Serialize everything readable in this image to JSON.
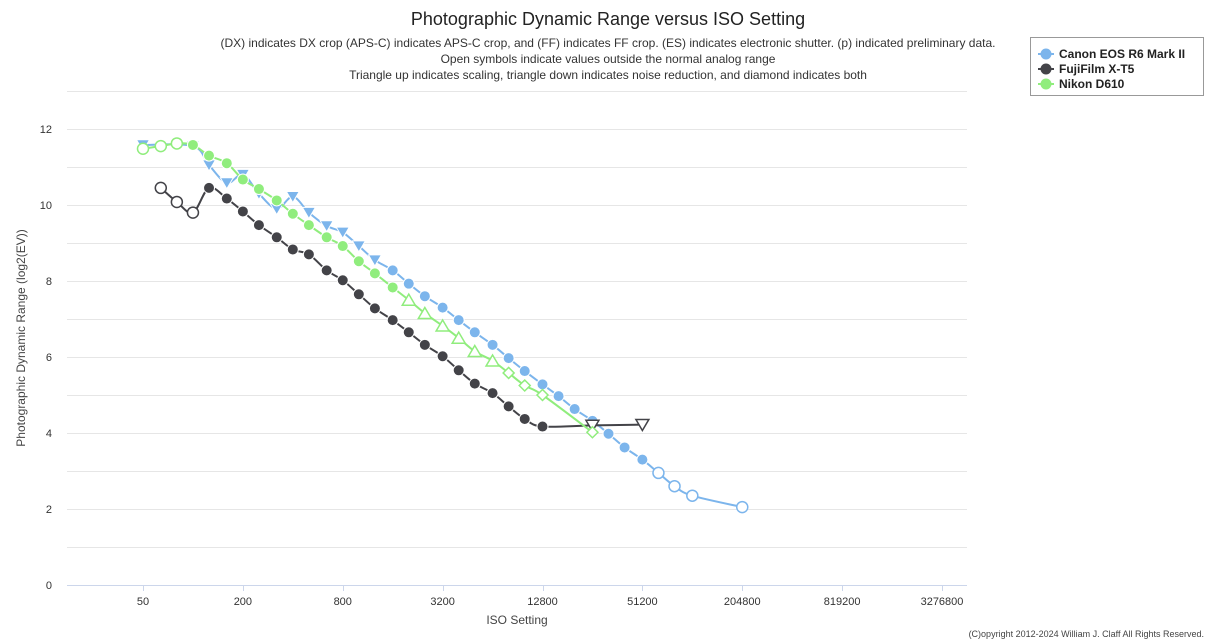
{
  "chart_data": {
    "type": "line",
    "title": "Photographic Dynamic Range versus ISO Setting",
    "subtitle_lines": [
      "(DX) indicates DX crop (APS-C) indicates APS-C crop, and (FF) indicates FF crop. (ES) indicates electronic shutter. (p) indicated preliminary data.",
      "Open symbols indicate values outside the normal analog range",
      "Triangle up indicates scaling, triangle down indicates noise reduction, and diamond indicates both"
    ],
    "xlabel": "ISO Setting",
    "ylabel": "Photographic Dynamic Range (log2(EV))",
    "x_scale": "log2",
    "x_ticks": [
      50,
      200,
      800,
      3200,
      12800,
      51200,
      204800,
      819200,
      3276800
    ],
    "x_tick_labels": [
      "50",
      "200",
      "800",
      "3200",
      "12800",
      "51200",
      "204800",
      "819200",
      "3276800"
    ],
    "ylim": [
      0,
      13
    ],
    "y_ticks": [
      0,
      2,
      4,
      6,
      8,
      10,
      12
    ],
    "y_tick_labels": [
      "0",
      "2",
      "4",
      "6",
      "8",
      "10",
      "12"
    ],
    "grid": true,
    "legend_position": "top-right",
    "copyright": "(C)opyright 2012-2024 William J. Claff All Rights Reserved.",
    "series": [
      {
        "name": "Canon EOS R6 Mark II",
        "color": "#7cb5ec",
        "points": [
          {
            "x": 50,
            "y": 11.58,
            "m": "tri-down",
            "open": false
          },
          {
            "x": 100,
            "y": 11.55,
            "m": "tri-down",
            "open": false
          },
          {
            "x": 125,
            "y": 11.05,
            "m": "tri-down",
            "open": false
          },
          {
            "x": 160,
            "y": 10.58,
            "m": "tri-down",
            "open": false
          },
          {
            "x": 200,
            "y": 10.8,
            "m": "tri-down",
            "open": false
          },
          {
            "x": 250,
            "y": 10.3,
            "m": "tri-down",
            "open": false
          },
          {
            "x": 320,
            "y": 9.9,
            "m": "tri-down",
            "open": false
          },
          {
            "x": 400,
            "y": 10.22,
            "m": "tri-down",
            "open": false
          },
          {
            "x": 500,
            "y": 9.8,
            "m": "tri-down",
            "open": false
          },
          {
            "x": 640,
            "y": 9.45,
            "m": "tri-down",
            "open": false
          },
          {
            "x": 800,
            "y": 9.28,
            "m": "tri-down",
            "open": false
          },
          {
            "x": 1000,
            "y": 8.92,
            "m": "tri-down",
            "open": false
          },
          {
            "x": 1250,
            "y": 8.55,
            "m": "tri-down",
            "open": false
          },
          {
            "x": 1600,
            "y": 8.28,
            "m": "circle",
            "open": false
          },
          {
            "x": 2000,
            "y": 7.93,
            "m": "circle",
            "open": false
          },
          {
            "x": 2500,
            "y": 7.6,
            "m": "circle",
            "open": false
          },
          {
            "x": 3200,
            "y": 7.3,
            "m": "circle",
            "open": false
          },
          {
            "x": 4000,
            "y": 6.97,
            "m": "circle",
            "open": false
          },
          {
            "x": 5000,
            "y": 6.65,
            "m": "circle",
            "open": false
          },
          {
            "x": 6400,
            "y": 6.32,
            "m": "circle",
            "open": false
          },
          {
            "x": 8000,
            "y": 5.97,
            "m": "circle",
            "open": false
          },
          {
            "x": 10000,
            "y": 5.63,
            "m": "circle",
            "open": false
          },
          {
            "x": 12800,
            "y": 5.28,
            "m": "circle",
            "open": false
          },
          {
            "x": 16000,
            "y": 4.97,
            "m": "circle",
            "open": false
          },
          {
            "x": 20000,
            "y": 4.63,
            "m": "circle",
            "open": false
          },
          {
            "x": 25600,
            "y": 4.32,
            "m": "circle",
            "open": false
          },
          {
            "x": 32000,
            "y": 3.98,
            "m": "circle",
            "open": false
          },
          {
            "x": 40000,
            "y": 3.62,
            "m": "circle",
            "open": false
          },
          {
            "x": 51200,
            "y": 3.3,
            "m": "circle",
            "open": false
          },
          {
            "x": 64000,
            "y": 2.95,
            "m": "circle",
            "open": true
          },
          {
            "x": 80000,
            "y": 2.6,
            "m": "circle",
            "open": true
          },
          {
            "x": 102400,
            "y": 2.35,
            "m": "circle",
            "open": true
          },
          {
            "x": 204800,
            "y": 2.05,
            "m": "circle",
            "open": true
          }
        ]
      },
      {
        "name": "FujiFilm X-T5",
        "color": "#434348",
        "points": [
          {
            "x": 64,
            "y": 10.45,
            "m": "circle",
            "open": true
          },
          {
            "x": 80,
            "y": 10.08,
            "m": "circle",
            "open": true
          },
          {
            "x": 100,
            "y": 9.8,
            "m": "circle",
            "open": true
          },
          {
            "x": 125,
            "y": 10.45,
            "m": "circle",
            "open": false
          },
          {
            "x": 160,
            "y": 10.17,
            "m": "circle",
            "open": false
          },
          {
            "x": 200,
            "y": 9.83,
            "m": "circle",
            "open": false
          },
          {
            "x": 250,
            "y": 9.47,
            "m": "circle",
            "open": false
          },
          {
            "x": 320,
            "y": 9.15,
            "m": "circle",
            "open": false
          },
          {
            "x": 400,
            "y": 8.83,
            "m": "circle",
            "open": false
          },
          {
            "x": 500,
            "y": 8.7,
            "m": "circle",
            "open": false
          },
          {
            "x": 640,
            "y": 8.28,
            "m": "circle",
            "open": false
          },
          {
            "x": 800,
            "y": 8.02,
            "m": "circle",
            "open": false
          },
          {
            "x": 1000,
            "y": 7.65,
            "m": "circle",
            "open": false
          },
          {
            "x": 1250,
            "y": 7.28,
            "m": "circle",
            "open": false
          },
          {
            "x": 1600,
            "y": 6.97,
            "m": "circle",
            "open": false
          },
          {
            "x": 2000,
            "y": 6.65,
            "m": "circle",
            "open": false
          },
          {
            "x": 2500,
            "y": 6.32,
            "m": "circle",
            "open": false
          },
          {
            "x": 3200,
            "y": 6.02,
            "m": "circle",
            "open": false
          },
          {
            "x": 4000,
            "y": 5.65,
            "m": "circle",
            "open": false
          },
          {
            "x": 5000,
            "y": 5.3,
            "m": "circle",
            "open": false
          },
          {
            "x": 6400,
            "y": 5.05,
            "m": "circle",
            "open": false
          },
          {
            "x": 8000,
            "y": 4.7,
            "m": "circle",
            "open": false
          },
          {
            "x": 10000,
            "y": 4.37,
            "m": "circle",
            "open": false
          },
          {
            "x": 12800,
            "y": 4.17,
            "m": "circle",
            "open": false
          },
          {
            "x": 25600,
            "y": 4.2,
            "m": "tri-down",
            "open": true
          },
          {
            "x": 51200,
            "y": 4.22,
            "m": "tri-down",
            "open": true
          }
        ]
      },
      {
        "name": "Nikon D610",
        "color": "#90ed7d",
        "points": [
          {
            "x": 50,
            "y": 11.48,
            "m": "circle",
            "open": true
          },
          {
            "x": 64,
            "y": 11.55,
            "m": "circle",
            "open": true
          },
          {
            "x": 80,
            "y": 11.62,
            "m": "circle",
            "open": true
          },
          {
            "x": 100,
            "y": 11.58,
            "m": "circle",
            "open": false
          },
          {
            "x": 125,
            "y": 11.3,
            "m": "circle",
            "open": false
          },
          {
            "x": 160,
            "y": 11.1,
            "m": "circle",
            "open": false
          },
          {
            "x": 200,
            "y": 10.67,
            "m": "circle",
            "open": false
          },
          {
            "x": 250,
            "y": 10.42,
            "m": "circle",
            "open": false
          },
          {
            "x": 320,
            "y": 10.12,
            "m": "circle",
            "open": false
          },
          {
            "x": 400,
            "y": 9.77,
            "m": "circle",
            "open": false
          },
          {
            "x": 500,
            "y": 9.47,
            "m": "circle",
            "open": false
          },
          {
            "x": 640,
            "y": 9.15,
            "m": "circle",
            "open": false
          },
          {
            "x": 800,
            "y": 8.92,
            "m": "circle",
            "open": false
          },
          {
            "x": 1000,
            "y": 8.52,
            "m": "circle",
            "open": false
          },
          {
            "x": 1250,
            "y": 8.2,
            "m": "circle",
            "open": false
          },
          {
            "x": 1600,
            "y": 7.83,
            "m": "circle",
            "open": false
          },
          {
            "x": 2000,
            "y": 7.5,
            "m": "tri-up",
            "open": true
          },
          {
            "x": 2500,
            "y": 7.15,
            "m": "tri-up",
            "open": true
          },
          {
            "x": 3200,
            "y": 6.82,
            "m": "tri-up",
            "open": true
          },
          {
            "x": 4000,
            "y": 6.5,
            "m": "tri-up",
            "open": true
          },
          {
            "x": 5000,
            "y": 6.15,
            "m": "tri-up",
            "open": true
          },
          {
            "x": 6400,
            "y": 5.9,
            "m": "tri-up",
            "open": true
          },
          {
            "x": 8000,
            "y": 5.58,
            "m": "diamond",
            "open": true
          },
          {
            "x": 10000,
            "y": 5.25,
            "m": "diamond",
            "open": true
          },
          {
            "x": 12800,
            "y": 5.0,
            "m": "diamond",
            "open": true
          },
          {
            "x": 25600,
            "y": 4.02,
            "m": "diamond",
            "open": true
          }
        ]
      }
    ]
  }
}
